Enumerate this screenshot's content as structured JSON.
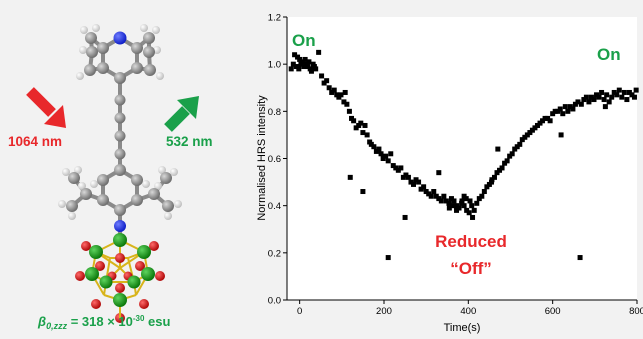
{
  "molecule": {
    "laser_in": "1064 nm",
    "laser_out": "532 nm",
    "beta_prefix": "β",
    "beta_sub": "0,zzz",
    "beta_mid": " = 318 × 10",
    "beta_exp": "-30",
    "beta_unit": " esu",
    "colors": {
      "in_arrow": "#e8282b",
      "out_arrow": "#1aa04a",
      "beta_text": "#1aa04a"
    }
  },
  "chart_data": {
    "type": "scatter",
    "title": "",
    "xlabel": "Time(s)",
    "ylabel": "Normalised HRS intensity",
    "xlim": [
      -30,
      800
    ],
    "ylim": [
      0,
      1.2
    ],
    "xticks": [
      0,
      200,
      400,
      600,
      800
    ],
    "yticks": [
      0.0,
      0.2,
      0.4,
      0.6,
      0.8,
      1.0,
      1.2
    ],
    "ytick_labels": [
      "0.0",
      "0.2",
      "0.4",
      "0.6",
      "0.8",
      "1.0",
      "1.2"
    ],
    "annotations": [
      {
        "text": "On",
        "color": "#1aa04a"
      },
      {
        "text": "On",
        "color": "#1aa04a"
      },
      {
        "text": "Reduced",
        "color": "#e8282b"
      },
      {
        "text": "“Off”",
        "color": "#e8282b"
      }
    ],
    "marker_color": "#000000",
    "series": [
      {
        "points": [
          [
            -20,
            0.98
          ],
          [
            -15,
            1.0
          ],
          [
            -12,
            1.04
          ],
          [
            -8,
            0.99
          ],
          [
            -5,
            1.03
          ],
          [
            -2,
            0.98
          ],
          [
            0,
            1.02
          ],
          [
            3,
            1.0
          ],
          [
            6,
            1.01
          ],
          [
            10,
            0.99
          ],
          [
            13,
            1.02
          ],
          [
            16,
            1.0
          ],
          [
            19,
            0.99
          ],
          [
            22,
            1.01
          ],
          [
            25,
            0.98
          ],
          [
            28,
            0.97
          ],
          [
            32,
            1.0
          ],
          [
            35,
            0.99
          ],
          [
            38,
            0.98
          ],
          [
            45,
            1.05
          ],
          [
            52,
            0.95
          ],
          [
            58,
            0.92
          ],
          [
            64,
            0.93
          ],
          [
            70,
            0.9
          ],
          [
            76,
            0.88
          ],
          [
            82,
            0.89
          ],
          [
            88,
            0.87
          ],
          [
            93,
            0.86
          ],
          [
            98,
            0.87
          ],
          [
            105,
            0.84
          ],
          [
            108,
            0.88
          ],
          [
            112,
            0.83
          ],
          [
            118,
            0.8
          ],
          [
            123,
            0.77
          ],
          [
            128,
            0.76
          ],
          [
            134,
            0.73
          ],
          [
            140,
            0.74
          ],
          [
            145,
            0.75
          ],
          [
            150,
            0.71
          ],
          [
            155,
            0.74
          ],
          [
            160,
            0.7
          ],
          [
            166,
            0.67
          ],
          [
            170,
            0.66
          ],
          [
            176,
            0.65
          ],
          [
            182,
            0.63
          ],
          [
            188,
            0.64
          ],
          [
            193,
            0.62
          ],
          [
            198,
            0.6
          ],
          [
            204,
            0.61
          ],
          [
            210,
            0.59
          ],
          [
            216,
            0.62
          ],
          [
            222,
            0.57
          ],
          [
            228,
            0.56
          ],
          [
            234,
            0.55
          ],
          [
            240,
            0.56
          ],
          [
            246,
            0.52
          ],
          [
            252,
            0.53
          ],
          [
            258,
            0.52
          ],
          [
            264,
            0.5
          ],
          [
            270,
            0.49
          ],
          [
            276,
            0.51
          ],
          [
            282,
            0.5
          ],
          [
            288,
            0.47
          ],
          [
            294,
            0.48
          ],
          [
            300,
            0.46
          ],
          [
            306,
            0.45
          ],
          [
            312,
            0.44
          ],
          [
            318,
            0.46
          ],
          [
            324,
            0.44
          ],
          [
            330,
            0.43
          ],
          [
            336,
            0.42
          ],
          [
            342,
            0.44
          ],
          [
            348,
            0.42
          ],
          [
            354,
            0.41
          ],
          [
            360,
            0.43
          ],
          [
            366,
            0.42
          ],
          [
            372,
            0.4
          ],
          [
            378,
            0.39
          ],
          [
            384,
            0.41
          ],
          [
            390,
            0.4
          ],
          [
            396,
            0.38
          ],
          [
            402,
            0.37
          ],
          [
            408,
            0.4
          ],
          [
            414,
            0.38
          ],
          [
            420,
            0.41
          ],
          [
            426,
            0.43
          ],
          [
            432,
            0.44
          ],
          [
            438,
            0.46
          ],
          [
            444,
            0.48
          ],
          [
            450,
            0.49
          ],
          [
            456,
            0.51
          ],
          [
            462,
            0.52
          ],
          [
            468,
            0.54
          ],
          [
            474,
            0.55
          ],
          [
            480,
            0.56
          ],
          [
            486,
            0.58
          ],
          [
            492,
            0.59
          ],
          [
            498,
            0.61
          ],
          [
            504,
            0.62
          ],
          [
            510,
            0.64
          ],
          [
            516,
            0.65
          ],
          [
            522,
            0.66
          ],
          [
            528,
            0.68
          ],
          [
            534,
            0.69
          ],
          [
            540,
            0.7
          ],
          [
            546,
            0.71
          ],
          [
            552,
            0.72
          ],
          [
            558,
            0.73
          ],
          [
            564,
            0.74
          ],
          [
            570,
            0.75
          ],
          [
            576,
            0.76
          ],
          [
            582,
            0.77
          ],
          [
            588,
            0.77
          ],
          [
            594,
            0.76
          ],
          [
            600,
            0.79
          ],
          [
            606,
            0.8
          ],
          [
            612,
            0.8
          ],
          [
            618,
            0.81
          ],
          [
            624,
            0.79
          ],
          [
            630,
            0.82
          ],
          [
            636,
            0.8
          ],
          [
            642,
            0.82
          ],
          [
            648,
            0.81
          ],
          [
            654,
            0.83
          ],
          [
            660,
            0.84
          ],
          [
            668,
            0.83
          ],
          [
            674,
            0.85
          ],
          [
            680,
            0.86
          ],
          [
            686,
            0.84
          ],
          [
            692,
            0.86
          ],
          [
            698,
            0.85
          ],
          [
            704,
            0.87
          ],
          [
            710,
            0.86
          ],
          [
            716,
            0.88
          ],
          [
            722,
            0.85
          ],
          [
            728,
            0.87
          ],
          [
            734,
            0.84
          ],
          [
            740,
            0.86
          ],
          [
            746,
            0.88
          ],
          [
            752,
            0.87
          ],
          [
            758,
            0.89
          ],
          [
            764,
            0.86
          ],
          [
            770,
            0.88
          ],
          [
            776,
            0.85
          ],
          [
            782,
            0.88
          ],
          [
            788,
            0.87
          ],
          [
            794,
            0.86
          ],
          [
            798,
            0.89
          ],
          [
            385,
            0.42
          ],
          [
            372,
            0.38
          ],
          [
            390,
            0.44
          ],
          [
            410,
            0.35
          ],
          [
            395,
            0.43
          ],
          [
            362,
            0.4
          ],
          [
            355,
            0.39
          ],
          [
            404,
            0.42
          ],
          [
            120,
            0.52
          ],
          [
            150,
            0.46
          ],
          [
            210,
            0.18
          ],
          [
            250,
            0.35
          ],
          [
            330,
            0.54
          ],
          [
            470,
            0.64
          ],
          [
            665,
            0.18
          ],
          [
            725,
            0.82
          ],
          [
            620,
            0.7
          ],
          [
            455,
            0.5
          ]
        ]
      }
    ]
  }
}
